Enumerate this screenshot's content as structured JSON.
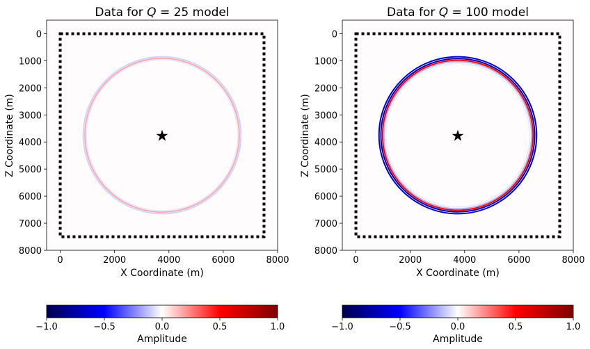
{
  "chart_data": [
    {
      "type": "heatmap",
      "title": "Data for Q = 25 model",
      "title_parts": {
        "prefix": "Data for ",
        "var": "Q",
        "suffix": " = 25 model"
      },
      "xlabel": "X Coordinate (m)",
      "ylabel": "Z Coordinate (m)",
      "xlim": [
        -500,
        8000
      ],
      "ylim": [
        8000,
        -500
      ],
      "xticks": [
        0,
        2000,
        4000,
        6000,
        8000
      ],
      "yticks": [
        0,
        1000,
        2000,
        3000,
        4000,
        5000,
        6000,
        7000,
        8000
      ],
      "source": {
        "x": 3750,
        "z": 3750,
        "marker": "star",
        "color": "#ff0000"
      },
      "receivers": {
        "x0": 0,
        "z0": 0,
        "x1": 7500,
        "z1": 7500,
        "style": "dotted",
        "color": "#000000"
      },
      "wavefront": {
        "center": [
          3750,
          3750
        ],
        "rings": [
          {
            "radius": 2900,
            "color": "#c8d0ff",
            "opacity": 0.9
          },
          {
            "radius": 2840,
            "color": "#ff9a9a",
            "opacity": 0.85
          },
          {
            "radius": 2790,
            "color": "#dde2ff",
            "opacity": 0.7
          }
        ]
      },
      "colorbar": {
        "label": "Amplitude",
        "range": [
          -1.0,
          1.0
        ],
        "ticks": [
          -1.0,
          -0.5,
          0.0,
          0.5,
          1.0
        ],
        "tick_labels": [
          "−1.0",
          "−0.5",
          "0.0",
          "0.5",
          "1.0"
        ],
        "colormap": "seismic"
      }
    },
    {
      "type": "heatmap",
      "title": "Data for Q = 100 model",
      "title_parts": {
        "prefix": "Data for ",
        "var": "Q",
        "suffix": " = 100 model"
      },
      "xlabel": "X Coordinate (m)",
      "ylabel": "Z Coordinate (m)",
      "xlim": [
        -500,
        8000
      ],
      "ylim": [
        8000,
        -500
      ],
      "xticks": [
        0,
        2000,
        4000,
        6000,
        8000
      ],
      "yticks": [
        0,
        1000,
        2000,
        3000,
        4000,
        5000,
        6000,
        7000,
        8000
      ],
      "source": {
        "x": 3750,
        "z": 3750,
        "marker": "star",
        "color": "#ff0000"
      },
      "receivers": {
        "x0": 0,
        "z0": 0,
        "x1": 7500,
        "z1": 7500,
        "style": "dotted",
        "color": "#000000"
      },
      "wavefront": {
        "center": [
          3750,
          3750
        ],
        "rings": [
          {
            "radius": 2900,
            "color": "#0000d0",
            "opacity": 1.0
          },
          {
            "radius": 2830,
            "color": "#0000aa",
            "opacity": 1.0
          },
          {
            "radius": 2770,
            "color": "#ff0000",
            "opacity": 1.0
          },
          {
            "radius": 2720,
            "color": "#8080e0",
            "opacity": 0.6
          },
          {
            "radius": 2650,
            "color": "#dcdcf8",
            "opacity": 0.5
          }
        ]
      },
      "colorbar": {
        "label": "Amplitude",
        "range": [
          -1.0,
          1.0
        ],
        "ticks": [
          -1.0,
          -0.5,
          0.0,
          0.5,
          1.0
        ],
        "tick_labels": [
          "−1.0",
          "−0.5",
          "0.0",
          "0.5",
          "1.0"
        ],
        "colormap": "seismic"
      }
    }
  ]
}
